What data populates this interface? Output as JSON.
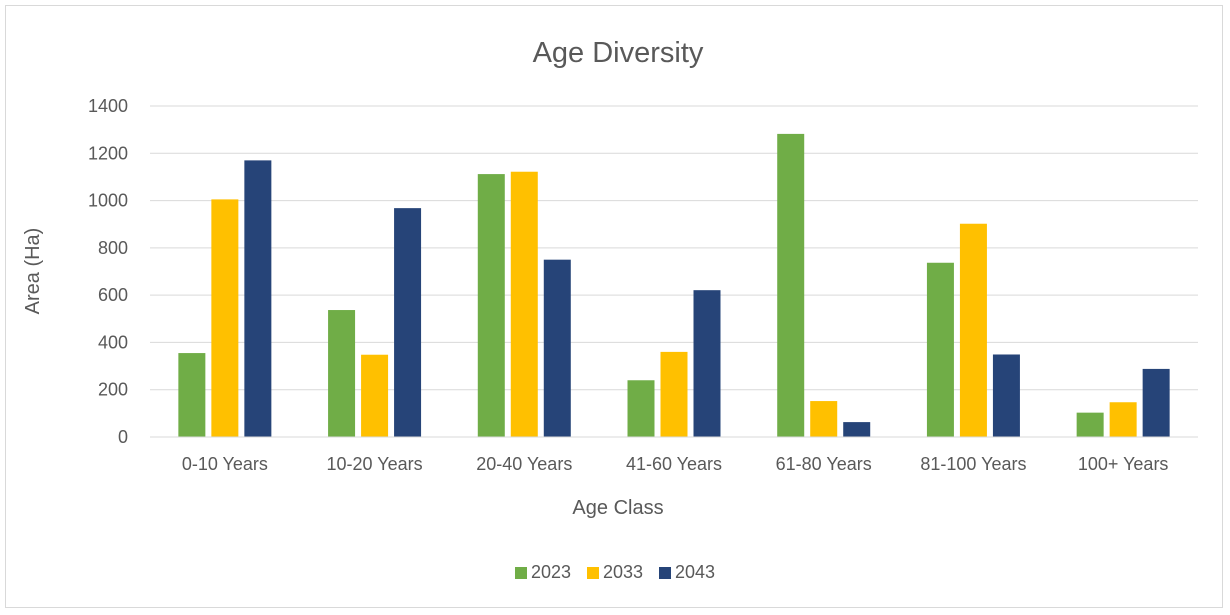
{
  "chart_data": {
    "type": "bar",
    "title": "Age Diversity",
    "xlabel": "Age Class",
    "ylabel": "Area (Ha)",
    "ylim": [
      0,
      1400
    ],
    "yticks": [
      0,
      200,
      400,
      600,
      800,
      1000,
      1200,
      1400
    ],
    "grid": true,
    "legend_position": "bottom",
    "categories": [
      "0-10 Years",
      "10-20 Years",
      "20-40 Years",
      "41-60 Years",
      "61-80 Years",
      "81-100 Years",
      "100+ Years"
    ],
    "series": [
      {
        "name": "2023",
        "color": "#70ad47",
        "values": [
          355,
          537,
          1112,
          240,
          1282,
          737,
          103
        ]
      },
      {
        "name": "2033",
        "color": "#ffc000",
        "values": [
          1005,
          348,
          1122,
          360,
          152,
          902,
          147
        ]
      },
      {
        "name": "2043",
        "color": "#264478",
        "values": [
          1170,
          968,
          750,
          621,
          63,
          349,
          288
        ]
      }
    ]
  }
}
